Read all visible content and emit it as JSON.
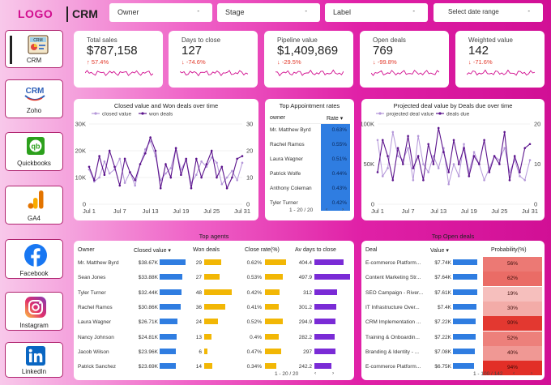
{
  "header": {
    "logo": "LOGO",
    "title": "CRM"
  },
  "filters": [
    {
      "label": "Owner",
      "caret": "-"
    },
    {
      "label": "Stage",
      "caret": "-"
    },
    {
      "label": "Label",
      "caret": "-"
    },
    {
      "label": "Select date range",
      "caret": "-"
    }
  ],
  "nav": [
    {
      "label": "CRM",
      "icon": "crm-dashboard-icon",
      "active": true
    },
    {
      "label": "Zoho",
      "icon": "zoho-crm-icon"
    },
    {
      "label": "Quickbooks",
      "icon": "quickbooks-icon"
    },
    {
      "label": "GA4",
      "icon": "ga4-icon"
    },
    {
      "label": "Facebook",
      "icon": "facebook-icon"
    },
    {
      "label": "Instagram",
      "icon": "instagram-icon"
    },
    {
      "label": "LinkedIn",
      "icon": "linkedin-icon"
    }
  ],
  "kpis": [
    {
      "title": "Total sales",
      "value": "$787,158",
      "delta": "57.4%",
      "dir": "up"
    },
    {
      "title": "Days to close",
      "value": "127",
      "delta": "-74.6%",
      "dir": "down"
    },
    {
      "title": "Pipeline value",
      "value": "$1,409,869",
      "delta": "-29.5%",
      "dir": "down"
    },
    {
      "title": "Open deals",
      "value": "769",
      "delta": "-99.8%",
      "dir": "down"
    },
    {
      "title": "Weighted value",
      "value": "142",
      "delta": "-71.6%",
      "dir": "down"
    }
  ],
  "colors": {
    "accent": "#d10c8e",
    "light_purple": "#b497d9",
    "dark_purple": "#5b138c",
    "blue_bar": "#2f7de1",
    "yellow_bar": "#f2b705",
    "violet_bar": "#7a2bd6",
    "red_cell": "#e0241b"
  },
  "chart_data": [
    {
      "type": "line",
      "title": "Closed value and Won deals over time",
      "x": [
        "Jul 1",
        "Jul 2",
        "Jul 3",
        "Jul 4",
        "Jul 5",
        "Jul 6",
        "Jul 7",
        "Jul 8",
        "Jul 9",
        "Jul 10",
        "Jul 11",
        "Jul 12",
        "Jul 13",
        "Jul 14",
        "Jul 15",
        "Jul 16",
        "Jul 17",
        "Jul 18",
        "Jul 19",
        "Jul 20",
        "Jul 21",
        "Jul 22",
        "Jul 23",
        "Jul 24",
        "Jul 25",
        "Jul 26",
        "Jul 27",
        "Jul 28",
        "Jul 29",
        "Jul 30",
        "Jul 31"
      ],
      "xticks": [
        "Jul 1",
        "Jul 7",
        "Jul 13",
        "Jul 19",
        "Jul 25",
        "Jul 31"
      ],
      "ylim_left": [
        0,
        30000
      ],
      "yticks_left": [
        "0",
        "10K",
        "20K",
        "30K"
      ],
      "ylim_right": [
        0,
        30
      ],
      "yticks_right": [
        "0",
        "10",
        "20",
        "30"
      ],
      "legend_position": "top-left",
      "series": [
        {
          "name": "closed value",
          "axis": "left",
          "values": [
            13000,
            8500,
            10000,
            16000,
            11500,
            13000,
            17000,
            8000,
            12000,
            7000,
            15000,
            20500,
            23500,
            18000,
            9000,
            11500,
            13500,
            21000,
            13000,
            16500,
            8000,
            11000,
            16000,
            14000,
            17500,
            15500,
            7500,
            10000,
            12500,
            9000,
            15500
          ]
        },
        {
          "name": "won deals",
          "axis": "right",
          "values": [
            14,
            9,
            18,
            11,
            20,
            14,
            7,
            17,
            12,
            9,
            15,
            19,
            25,
            20,
            6,
            15,
            10,
            21,
            11,
            17,
            6,
            17,
            10,
            15,
            20,
            10,
            14,
            6,
            10,
            17,
            18
          ]
        }
      ]
    },
    {
      "type": "table",
      "title": "Top Appointment rates",
      "columns": [
        "owner",
        "Rate"
      ],
      "rows": [
        [
          "Mr. Matthew Byrd",
          "0.63%"
        ],
        [
          "Rachel Ramos",
          "0.55%"
        ],
        [
          "Laura Wagner",
          "0.51%"
        ],
        [
          "Patrick Wolfe",
          "0.44%"
        ],
        [
          "Anthony Coleman",
          "0.43%"
        ],
        [
          "Tyler Turner",
          "0.42%"
        ]
      ],
      "pager": "1 - 20 / 20"
    },
    {
      "type": "line",
      "title": "Projected deal value by Deals due over time",
      "x": [
        "Jul 1",
        "Jul 2",
        "Jul 3",
        "Jul 4",
        "Jul 5",
        "Jul 6",
        "Jul 7",
        "Jul 8",
        "Jul 9",
        "Jul 10",
        "Jul 11",
        "Jul 12",
        "Jul 13",
        "Jul 14",
        "Jul 15",
        "Jul 16",
        "Jul 17",
        "Jul 18",
        "Jul 19",
        "Jul 20",
        "Jul 21",
        "Jul 22",
        "Jul 23",
        "Jul 24",
        "Jul 25",
        "Jul 26",
        "Jul 27",
        "Jul 28",
        "Jul 29",
        "Jul 30",
        "Jul 31"
      ],
      "xticks": [
        "Jul 1",
        "Jul 7",
        "Jul 13",
        "Jul 19",
        "Jul 25",
        "Jul 31"
      ],
      "ylim_left": [
        0,
        100000
      ],
      "yticks_left": [
        "0",
        "50K",
        "100K"
      ],
      "ylim_right": [
        0,
        20
      ],
      "yticks_right": [
        "0",
        "10",
        "20"
      ],
      "legend_position": "top-left",
      "series": [
        {
          "name": "projected deal value",
          "axis": "left",
          "values": [
            80000,
            35000,
            45000,
            90000,
            60000,
            55000,
            70000,
            30000,
            85000,
            50000,
            40000,
            60000,
            45000,
            70000,
            25000,
            50000,
            35000,
            75000,
            40000,
            65000,
            50000,
            30000,
            45000,
            60000,
            55000,
            70000,
            40000,
            55000,
            35000,
            30000,
            55000
          ]
        },
        {
          "name": "deals due",
          "axis": "right",
          "values": [
            8,
            16,
            12,
            6,
            14,
            10,
            17,
            9,
            12,
            6,
            15,
            10,
            19,
            13,
            8,
            16,
            10,
            14,
            7,
            12,
            10,
            16,
            8,
            12,
            10,
            18,
            6,
            12,
            8,
            14,
            15
          ]
        }
      ]
    }
  ],
  "top_agents": {
    "title": "Top agents",
    "columns": [
      "Owner",
      "Closed value",
      "Won deals",
      "Close rate(%)",
      "Av days to close"
    ],
    "rows": [
      {
        "owner": "Mr. Matthew Byrd",
        "closed": "$38.67K",
        "closed_v": 38.67,
        "won": "29",
        "won_v": 29,
        "rate": "0.62%",
        "rate_v": 0.62,
        "days": "404.4",
        "days_v": 404.4
      },
      {
        "owner": "Sean Jones",
        "closed": "$33.88K",
        "closed_v": 33.88,
        "won": "27",
        "won_v": 27,
        "rate": "0.53%",
        "rate_v": 0.53,
        "days": "497.9",
        "days_v": 497.9
      },
      {
        "owner": "Tyler Turner",
        "closed": "$32.44K",
        "closed_v": 32.44,
        "won": "48",
        "won_v": 48,
        "rate": "0.42%",
        "rate_v": 0.42,
        "days": "312",
        "days_v": 312
      },
      {
        "owner": "Rachel Ramos",
        "closed": "$30.86K",
        "closed_v": 30.86,
        "won": "36",
        "won_v": 36,
        "rate": "0.41%",
        "rate_v": 0.41,
        "days": "301.2",
        "days_v": 301.2
      },
      {
        "owner": "Laura Wagner",
        "closed": "$26.71K",
        "closed_v": 26.71,
        "won": "24",
        "won_v": 24,
        "rate": "0.52%",
        "rate_v": 0.52,
        "days": "294.9",
        "days_v": 294.9
      },
      {
        "owner": "Nancy Johnson",
        "closed": "$24.81K",
        "closed_v": 24.81,
        "won": "13",
        "won_v": 13,
        "rate": "0.4%",
        "rate_v": 0.4,
        "days": "282.2",
        "days_v": 282.2
      },
      {
        "owner": "Jacob Wilson",
        "closed": "$23.96K",
        "closed_v": 23.96,
        "won": "6",
        "won_v": 6,
        "rate": "0.47%",
        "rate_v": 0.47,
        "days": "297",
        "days_v": 297
      },
      {
        "owner": "Patrick Sanchez",
        "closed": "$23.69K",
        "closed_v": 23.69,
        "won": "14",
        "won_v": 14,
        "rate": "0.34%",
        "rate_v": 0.34,
        "days": "242.2",
        "days_v": 242.2
      }
    ],
    "pager": "1 - 20 / 20"
  },
  "top_open_deals": {
    "title": "Top Open deals",
    "columns": [
      "Deal",
      "Value",
      "Probability(%)"
    ],
    "rows": [
      {
        "deal": "E-commerce Platform...",
        "value": "$7.74K",
        "value_v": 7.74,
        "prob": "56%",
        "prob_v": 56
      },
      {
        "deal": "Content Marketing Str...",
        "value": "$7.64K",
        "value_v": 7.64,
        "prob": "62%",
        "prob_v": 62
      },
      {
        "deal": "SEO Campaign - River...",
        "value": "$7.61K",
        "value_v": 7.61,
        "prob": "19%",
        "prob_v": 19
      },
      {
        "deal": "IT Infrastructure Over...",
        "value": "$7.4K",
        "value_v": 7.4,
        "prob": "30%",
        "prob_v": 30
      },
      {
        "deal": "CRM Implementation ...",
        "value": "$7.22K",
        "value_v": 7.22,
        "prob": "90%",
        "prob_v": 90
      },
      {
        "deal": "Training & Onboardin...",
        "value": "$7.22K",
        "value_v": 7.22,
        "prob": "52%",
        "prob_v": 52
      },
      {
        "deal": "Branding & Identity - ...",
        "value": "$7.08K",
        "value_v": 7.08,
        "prob": "40%",
        "prob_v": 40
      },
      {
        "deal": "E-commerce Platform...",
        "value": "$6.75K",
        "value_v": 6.75,
        "prob": "94%",
        "prob_v": 94
      }
    ],
    "pager": "1 - 100 / 142"
  }
}
